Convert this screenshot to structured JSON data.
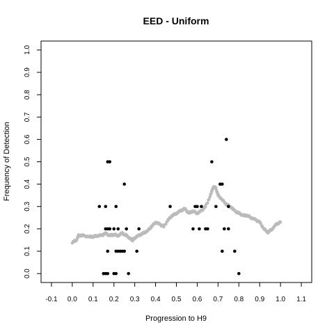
{
  "chart_data": {
    "type": "scatter",
    "title": "EED - Uniform",
    "xlabel": "Progression to H9",
    "ylabel": "Frequency of Detection",
    "xlim": [
      -0.15,
      1.15
    ],
    "ylim": [
      -0.04,
      1.04
    ],
    "xticks": [
      "-0.1",
      "0.0",
      "0.1",
      "0.2",
      "0.3",
      "0.4",
      "0.5",
      "0.6",
      "0.7",
      "0.8",
      "0.9",
      "1.0",
      "1.1"
    ],
    "yticks": [
      "0.0",
      "0.1",
      "0.2",
      "0.3",
      "0.4",
      "0.5",
      "0.6",
      "0.7",
      "0.8",
      "0.9",
      "1.0"
    ],
    "grid": false,
    "series": [
      {
        "kind": "points",
        "color": "#000000",
        "points": [
          [
            0.13,
            0.3
          ],
          [
            0.15,
            0.0
          ],
          [
            0.16,
            0.0
          ],
          [
            0.16,
            0.2
          ],
          [
            0.16,
            0.3
          ],
          [
            0.17,
            0.5
          ],
          [
            0.17,
            0.1
          ],
          [
            0.17,
            0.0
          ],
          [
            0.17,
            0.2
          ],
          [
            0.18,
            0.2
          ],
          [
            0.18,
            0.5
          ],
          [
            0.2,
            0.2
          ],
          [
            0.2,
            0.0
          ],
          [
            0.21,
            0.1
          ],
          [
            0.21,
            0.0
          ],
          [
            0.21,
            0.3
          ],
          [
            0.22,
            0.1
          ],
          [
            0.22,
            0.2
          ],
          [
            0.23,
            0.1
          ],
          [
            0.24,
            0.1
          ],
          [
            0.25,
            0.1
          ],
          [
            0.25,
            0.4
          ],
          [
            0.26,
            0.2
          ],
          [
            0.27,
            0.0
          ],
          [
            0.31,
            0.1
          ],
          [
            0.32,
            0.2
          ],
          [
            0.47,
            0.3
          ],
          [
            0.58,
            0.2
          ],
          [
            0.59,
            0.3
          ],
          [
            0.6,
            0.3
          ],
          [
            0.61,
            0.2
          ],
          [
            0.62,
            0.3
          ],
          [
            0.64,
            0.2
          ],
          [
            0.65,
            0.2
          ],
          [
            0.67,
            0.5
          ],
          [
            0.69,
            0.3
          ],
          [
            0.71,
            0.4
          ],
          [
            0.72,
            0.4
          ],
          [
            0.72,
            0.1
          ],
          [
            0.73,
            0.2
          ],
          [
            0.74,
            0.6
          ],
          [
            0.75,
            0.3
          ],
          [
            0.75,
            0.2
          ],
          [
            0.78,
            0.1
          ],
          [
            0.8,
            0.0
          ]
        ]
      },
      {
        "kind": "smooth",
        "color": "#bbbbbb",
        "x": [
          0.0,
          0.02,
          0.03,
          0.05,
          0.08,
          0.1,
          0.12,
          0.14,
          0.16,
          0.18,
          0.2,
          0.22,
          0.24,
          0.26,
          0.28,
          0.29,
          0.3,
          0.32,
          0.34,
          0.36,
          0.38,
          0.4,
          0.42,
          0.44,
          0.46,
          0.48,
          0.5,
          0.52,
          0.54,
          0.56,
          0.58,
          0.6,
          0.62,
          0.64,
          0.66,
          0.67,
          0.68,
          0.69,
          0.7,
          0.72,
          0.74,
          0.76,
          0.78,
          0.8,
          0.82,
          0.84,
          0.86,
          0.88,
          0.9,
          0.92,
          0.94,
          0.96,
          0.98,
          1.0
        ],
        "y": [
          0.14,
          0.15,
          0.17,
          0.17,
          0.165,
          0.165,
          0.17,
          0.17,
          0.18,
          0.17,
          0.175,
          0.17,
          0.18,
          0.17,
          0.155,
          0.15,
          0.16,
          0.17,
          0.18,
          0.19,
          0.21,
          0.23,
          0.22,
          0.21,
          0.24,
          0.26,
          0.27,
          0.28,
          0.29,
          0.27,
          0.28,
          0.27,
          0.28,
          0.3,
          0.34,
          0.37,
          0.39,
          0.38,
          0.35,
          0.33,
          0.31,
          0.3,
          0.28,
          0.27,
          0.26,
          0.26,
          0.25,
          0.24,
          0.23,
          0.2,
          0.185,
          0.2,
          0.22,
          0.23
        ]
      }
    ]
  }
}
